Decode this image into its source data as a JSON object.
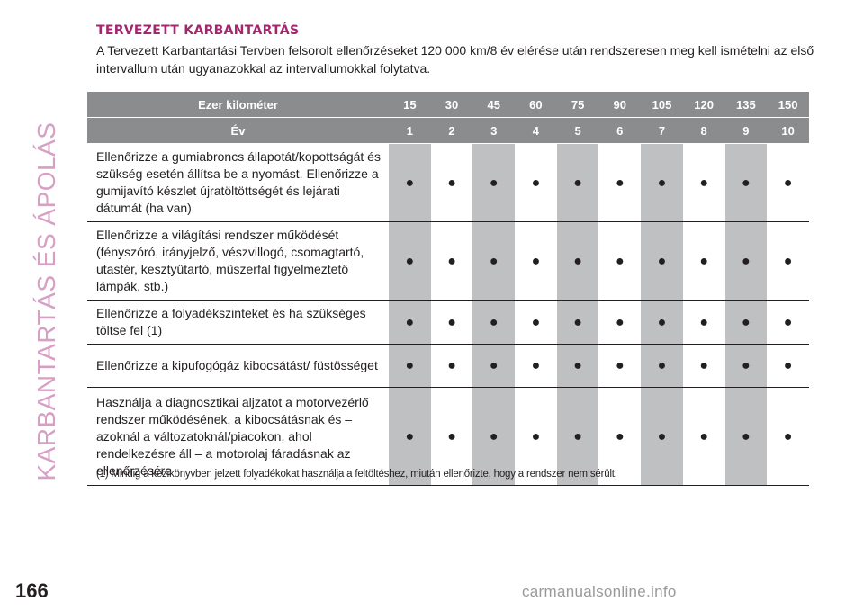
{
  "side_title": "KARBANTARTÁS ÉS ÁPOLÁS",
  "section_title": "TERVEZETT KARBANTARTÁS",
  "intro": "A Tervezett Karbantartási Tervben felsorolt ellenőrzéseket 120 000 km/8 év elérése után rendszeresen meg kell ismételni az első intervallum után ugyanazokkal az intervallumokkal folytatva.",
  "table": {
    "header_km_label": "Ezer kilométer",
    "km": [
      "15",
      "30",
      "45",
      "60",
      "75",
      "90",
      "105",
      "120",
      "135",
      "150"
    ],
    "header_year_label": "Év",
    "years": [
      "1",
      "2",
      "3",
      "4",
      "5",
      "6",
      "7",
      "8",
      "9",
      "10"
    ],
    "dot": "●",
    "rows": [
      {
        "label": "Ellenőrizze a gumiabroncs állapotát/kopottságát és szükség esetén állítsa be a nyomást. Ellenőrizze a gumijavító készlet újratöltöttségét és lejárati dátumát (ha van)"
      },
      {
        "label": "Ellenőrizze a világítási rendszer működését (fényszóró, irányjelző, vészvillogó, csomagtartó, utastér, kesztyűtartó, műszerfal figyelmeztető lámpák, stb.)"
      },
      {
        "label": "Ellenőrizze a folyadékszinteket és ha szükséges töltse fel (1)"
      },
      {
        "label": "Ellenőrizze a kipufogógáz kibocsátást/ füstösséget"
      },
      {
        "label": "Használja a diagnosztikai aljzatot a motorvezérlő rendszer működésének, a kibocsátásnak és – azoknál a változatoknál/piacokon, ahol rendelkezésre áll – a motorolaj fáradásnak az ellenőrzésére"
      }
    ]
  },
  "footnote": "(1) Mindig a kézikönyvben jelzett folyadékokat használja a feltöltéshez, miután ellenőrizte, hogy a rendszer nem sérült.",
  "page_number": "166",
  "watermark": "carmanualsonline.info"
}
